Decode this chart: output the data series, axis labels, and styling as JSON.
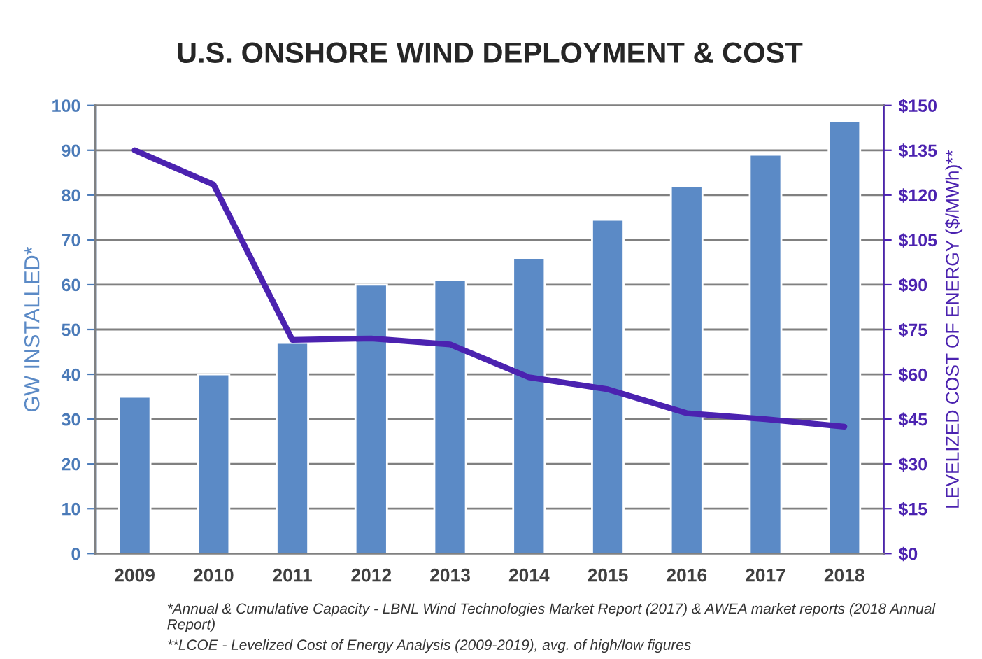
{
  "chart_data": {
    "type": "bar",
    "title": "U.S. ONSHORE WIND DEPLOYMENT & COST",
    "ylabel": "GW INSTALLED*",
    "y2label": "LEVELIZED COST OF ENERGY ($/MWh)**",
    "categories": [
      "2009",
      "2010",
      "2011",
      "2012",
      "2013",
      "2014",
      "2015",
      "2016",
      "2017",
      "2018"
    ],
    "series": [
      {
        "color": "#5b8ac6",
        "values": [
          35,
          40,
          47,
          60,
          61,
          66,
          74.5,
          82,
          89,
          96.5
        ]
      },
      {
        "type": "line",
        "axis": "y2",
        "color": "#4b22b0",
        "values": [
          135,
          123.5,
          71.5,
          72,
          70,
          59,
          55,
          47,
          45,
          42.5
        ]
      }
    ],
    "ylim": [
      0,
      100
    ],
    "yticks": [
      0,
      10,
      20,
      30,
      40,
      50,
      60,
      70,
      80,
      90,
      100
    ],
    "y2lim": [
      0,
      150
    ],
    "y2ticks": [
      {
        "value": 0,
        "label": "$0"
      },
      {
        "value": 15,
        "label": "$15"
      },
      {
        "value": 30,
        "label": "$30"
      },
      {
        "value": 45,
        "label": "$45"
      },
      {
        "value": 60,
        "label": "$60"
      },
      {
        "value": 75,
        "label": "$75"
      },
      {
        "value": 90,
        "label": "$90"
      },
      {
        "value": 105,
        "label": "$105"
      },
      {
        "value": 120,
        "label": "$120"
      },
      {
        "value": 135,
        "label": "$135"
      },
      {
        "value": 150,
        "label": "$150"
      }
    ],
    "grid": "y",
    "legend": false,
    "marker": "none",
    "line_style": "solid",
    "annotations": [
      "*Annual & Cumulative Capacity - LBNL Wind Technologies Market Report (2017) & AWEA market reports (2018 Annual Report)",
      "**LCOE - Levelized Cost of Energy Analysis (2009-2019), avg. of high/low figures"
    ]
  }
}
